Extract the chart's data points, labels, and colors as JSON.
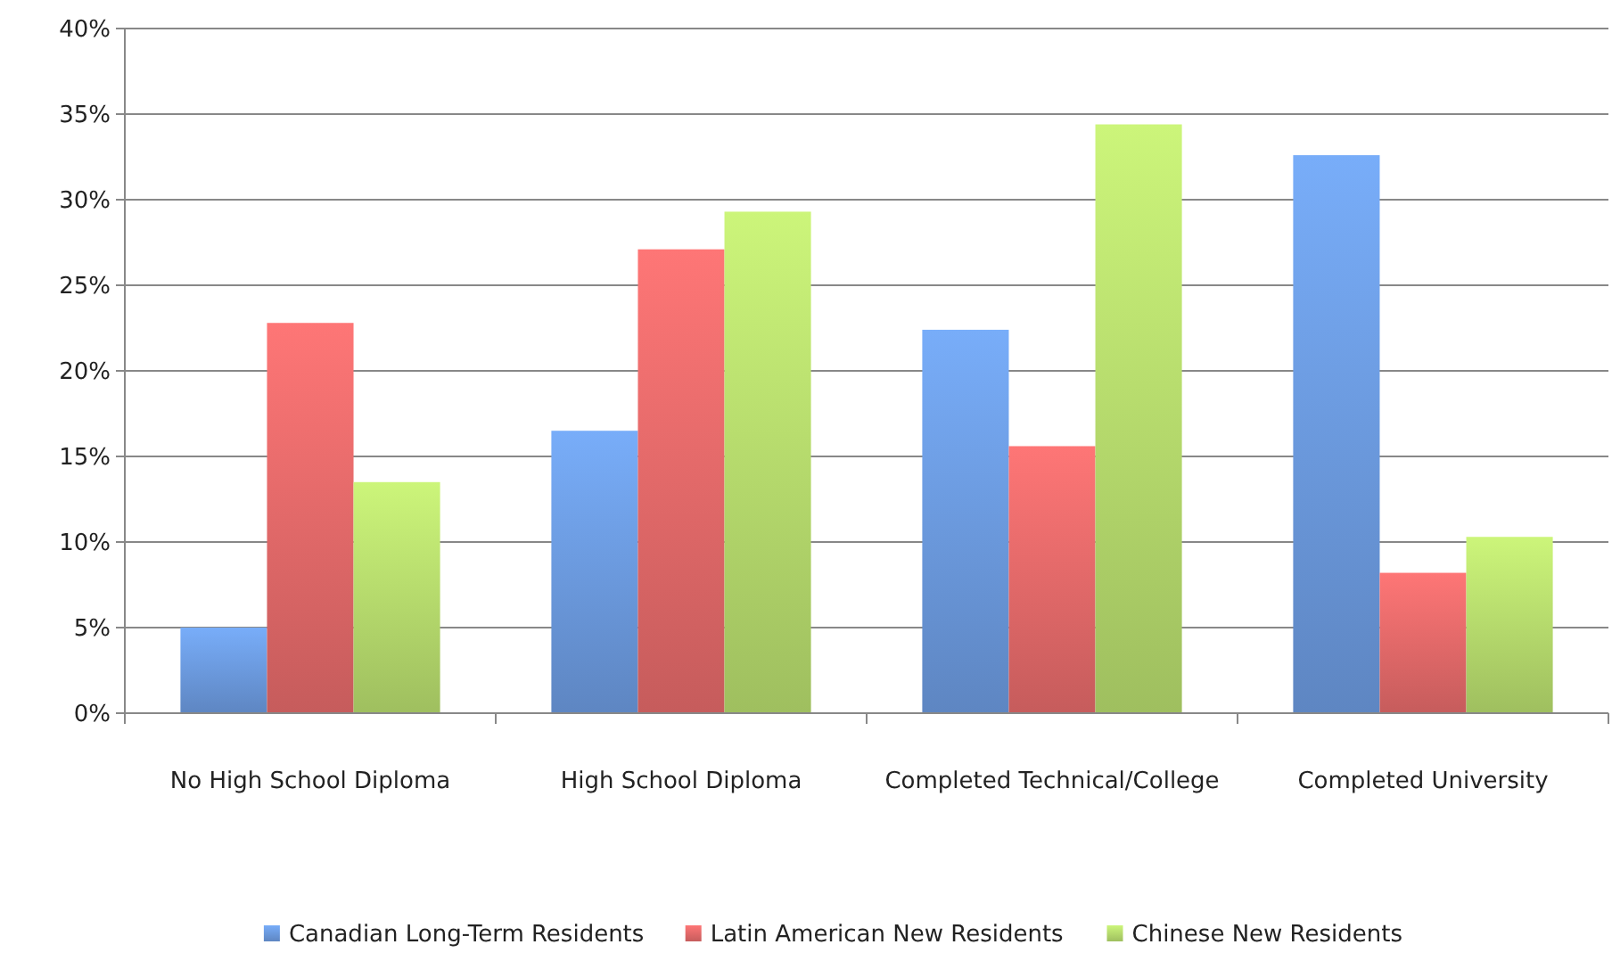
{
  "chart_data": {
    "type": "bar",
    "categories": [
      "No High School Diploma",
      "High School Diploma",
      "Completed Technical/College",
      "Completed University"
    ],
    "series": [
      {
        "name": "Canadian Long-Term Residents",
        "color": "#6c9be0",
        "values": [
          5.0,
          16.5,
          22.4,
          32.6
        ]
      },
      {
        "name": "Latin American New Residents",
        "color": "#e46a6a",
        "values": [
          22.8,
          27.1,
          15.6,
          8.2
        ]
      },
      {
        "name": "Chinese New Residents",
        "color": "#b7dc6e",
        "values": [
          13.5,
          29.3,
          34.4,
          10.3
        ]
      }
    ],
    "ylim": [
      0,
      40
    ],
    "yticks": [
      {
        "value": 0,
        "label": "0%"
      },
      {
        "value": 5,
        "label": "5%"
      },
      {
        "value": 10,
        "label": "10%"
      },
      {
        "value": 15,
        "label": "15%"
      },
      {
        "value": 20,
        "label": "20%"
      },
      {
        "value": 25,
        "label": "25%"
      },
      {
        "value": 30,
        "label": "30%"
      },
      {
        "value": 35,
        "label": "35%"
      },
      {
        "value": 40,
        "label": "40%"
      }
    ],
    "grid": "y",
    "legend": "bottom"
  }
}
